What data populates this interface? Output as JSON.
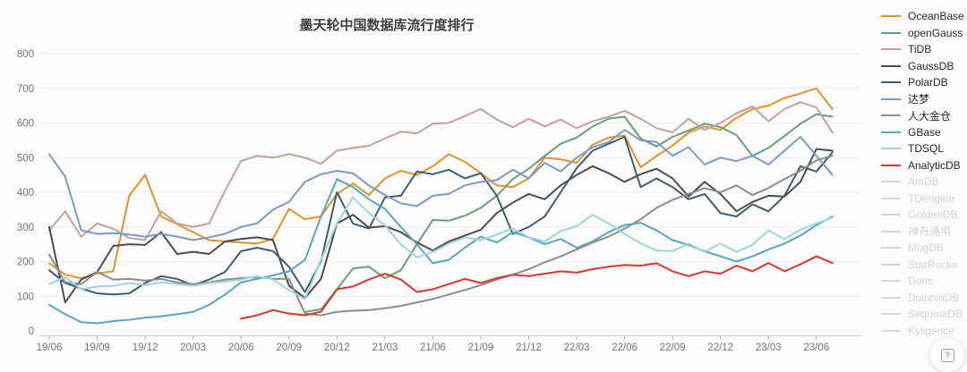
{
  "chart_data": {
    "type": "line",
    "title": "墨天轮中国数据库流行度排行",
    "x_tick_labels": [
      "19/06",
      "19/09",
      "19/12",
      "20/03",
      "20/06",
      "20/09",
      "20/12",
      "21/03",
      "21/06",
      "21/09",
      "21/12",
      "22/03",
      "22/06",
      "22/09",
      "22/12",
      "23/03",
      "23/06"
    ],
    "tick_every_n_points": 3,
    "points_per_series": 50,
    "x_start": "19/06",
    "x_end": "23/07",
    "x_interval": "monthly",
    "ylim": [
      0,
      800
    ],
    "y_ticks": [
      0,
      100,
      200,
      300,
      400,
      500,
      600,
      700,
      800
    ],
    "grid": "horizontal",
    "legend_position": "right",
    "axis_label_color": "#737373",
    "grid_color": "#e6edf5",
    "axis_line_color": "#cccccc",
    "series": [
      {
        "name": "OceanBase",
        "color": "#e09329",
        "disabled": false,
        "values": [
          195,
          162,
          152,
          166,
          172,
          390,
          450,
          330,
          308,
          285,
          262,
          258,
          255,
          252,
          266,
          352,
          322,
          330,
          395,
          425,
          392,
          440,
          462,
          450,
          475,
          510,
          488,
          455,
          420,
          415,
          440,
          500,
          495,
          485,
          537,
          558,
          563,
          472,
          505,
          535,
          572,
          590,
          580,
          615,
          640,
          650,
          672,
          685,
          700,
          640
        ]
      },
      {
        "name": "openGauss",
        "color": "#6b9e78",
        "disabled": false,
        "values": [
          null,
          null,
          null,
          null,
          null,
          null,
          null,
          null,
          null,
          null,
          null,
          null,
          null,
          null,
          null,
          null,
          55,
          62,
          120,
          180,
          185,
          152,
          175,
          250,
          320,
          318,
          332,
          355,
          390,
          438,
          468,
          505,
          540,
          558,
          590,
          612,
          618,
          555,
          532,
          560,
          578,
          598,
          588,
          565,
          505,
          528,
          562,
          598,
          625,
          618
        ]
      },
      {
        "name": "TiDB",
        "color": "#c5a09a",
        "disabled": false,
        "values": [
          290,
          345,
          272,
          310,
          295,
          268,
          262,
          345,
          310,
          300,
          310,
          405,
          490,
          505,
          500,
          510,
          500,
          482,
          520,
          528,
          534,
          555,
          575,
          570,
          598,
          600,
          620,
          640,
          610,
          588,
          612,
          590,
          610,
          585,
          605,
          618,
          635,
          612,
          585,
          573,
          612,
          580,
          600,
          628,
          648,
          605,
          640,
          660,
          645,
          572
        ]
      },
      {
        "name": "GaussDB",
        "color": "#4c4c4c",
        "disabled": false,
        "values": [
          300,
          82,
          148,
          170,
          245,
          250,
          248,
          285,
          222,
          228,
          222,
          258,
          265,
          270,
          262,
          130,
          95,
          150,
          310,
          335,
          298,
          302,
          285,
          255,
          232,
          258,
          275,
          292,
          340,
          370,
          395,
          380,
          420,
          450,
          475,
          455,
          430,
          452,
          468,
          440,
          388,
          430,
          395,
          345,
          372,
          390,
          388,
          430,
          525,
          520
        ]
      },
      {
        "name": "PolarDB",
        "color": "#3d5c73",
        "disabled": false,
        "values": [
          175,
          138,
          122,
          108,
          105,
          108,
          138,
          158,
          150,
          132,
          148,
          170,
          230,
          240,
          230,
          185,
          112,
          200,
          400,
          310,
          295,
          385,
          390,
          460,
          452,
          465,
          440,
          455,
          390,
          280,
          300,
          330,
          400,
          470,
          520,
          540,
          560,
          415,
          440,
          415,
          380,
          395,
          340,
          330,
          365,
          345,
          390,
          475,
          460,
          515
        ]
      },
      {
        "name": "达梦",
        "color": "#7d99c9",
        "disabled": false,
        "values": [
          510,
          445,
          290,
          280,
          282,
          278,
          272,
          280,
          272,
          262,
          270,
          280,
          300,
          310,
          350,
          372,
          430,
          452,
          462,
          455,
          420,
          392,
          368,
          360,
          390,
          395,
          420,
          430,
          435,
          465,
          440,
          485,
          460,
          500,
          530,
          545,
          580,
          550,
          545,
          505,
          530,
          480,
          500,
          490,
          505,
          480,
          520,
          560,
          505,
          450
        ]
      },
      {
        "name": "人大金仓",
        "color": "#8c8c8c",
        "disabled": false,
        "values": [
          220,
          140,
          135,
          170,
          148,
          150,
          145,
          150,
          140,
          135,
          140,
          148,
          152,
          155,
          150,
          150,
          50,
          45,
          55,
          58,
          60,
          65,
          72,
          82,
          92,
          105,
          118,
          132,
          148,
          162,
          178,
          198,
          215,
          235,
          255,
          272,
          295,
          322,
          355,
          378,
          395,
          412,
          400,
          420,
          392,
          412,
          438,
          462,
          492,
          505
        ]
      },
      {
        "name": "GBase",
        "color": "#56a6c2",
        "disabled": false,
        "values": [
          75,
          48,
          25,
          22,
          28,
          32,
          38,
          42,
          48,
          55,
          75,
          105,
          140,
          150,
          160,
          172,
          205,
          330,
          438,
          415,
          380,
          352,
          300,
          250,
          195,
          205,
          240,
          272,
          255,
          285,
          270,
          250,
          265,
          240,
          258,
          285,
          305,
          312,
          290,
          262,
          248,
          230,
          215,
          200,
          215,
          235,
          252,
          275,
          305,
          330
        ]
      },
      {
        "name": "TDSQL",
        "color": "#9ed5dd",
        "disabled": false,
        "values": [
          135,
          155,
          120,
          128,
          130,
          138,
          132,
          140,
          135,
          130,
          138,
          142,
          148,
          158,
          148,
          118,
          92,
          205,
          310,
          385,
          340,
          305,
          250,
          212,
          228,
          252,
          270,
          262,
          278,
          295,
          270,
          258,
          288,
          302,
          335,
          310,
          280,
          253,
          232,
          230,
          252,
          228,
          252,
          228,
          248,
          290,
          265,
          292,
          310,
          327
        ]
      },
      {
        "name": "AnalyticDB",
        "color": "#d6372e",
        "disabled": false,
        "values": [
          null,
          null,
          null,
          null,
          null,
          null,
          null,
          null,
          null,
          null,
          null,
          null,
          35,
          45,
          60,
          50,
          45,
          55,
          120,
          128,
          148,
          165,
          148,
          112,
          120,
          135,
          150,
          138,
          152,
          162,
          158,
          165,
          172,
          168,
          178,
          185,
          190,
          188,
          195,
          172,
          158,
          172,
          165,
          188,
          172,
          196,
          172,
          192,
          215,
          196
        ]
      },
      {
        "name": "AntDB",
        "color": "#d8d8d8",
        "disabled": true,
        "values": []
      },
      {
        "name": "TDengine",
        "color": "#d8d8d8",
        "disabled": true,
        "values": []
      },
      {
        "name": "GoldenDB",
        "color": "#d8d8d8",
        "disabled": true,
        "values": []
      },
      {
        "name": "神舟通用",
        "color": "#d8d8d8",
        "disabled": true,
        "values": []
      },
      {
        "name": "MogDB",
        "color": "#d8d8d8",
        "disabled": true,
        "values": []
      },
      {
        "name": "StarRocks",
        "color": "#d8d8d8",
        "disabled": true,
        "values": []
      },
      {
        "name": "Doris",
        "color": "#d8d8d8",
        "disabled": true,
        "values": []
      },
      {
        "name": "DolphinDB",
        "color": "#d8d8d8",
        "disabled": true,
        "values": []
      },
      {
        "name": "SequoiaDB",
        "color": "#d8d8d8",
        "disabled": true,
        "values": []
      },
      {
        "name": "Kyligence",
        "color": "#d8d8d8",
        "disabled": true,
        "values": []
      }
    ]
  },
  "help_button": {
    "icon_label": "?"
  }
}
